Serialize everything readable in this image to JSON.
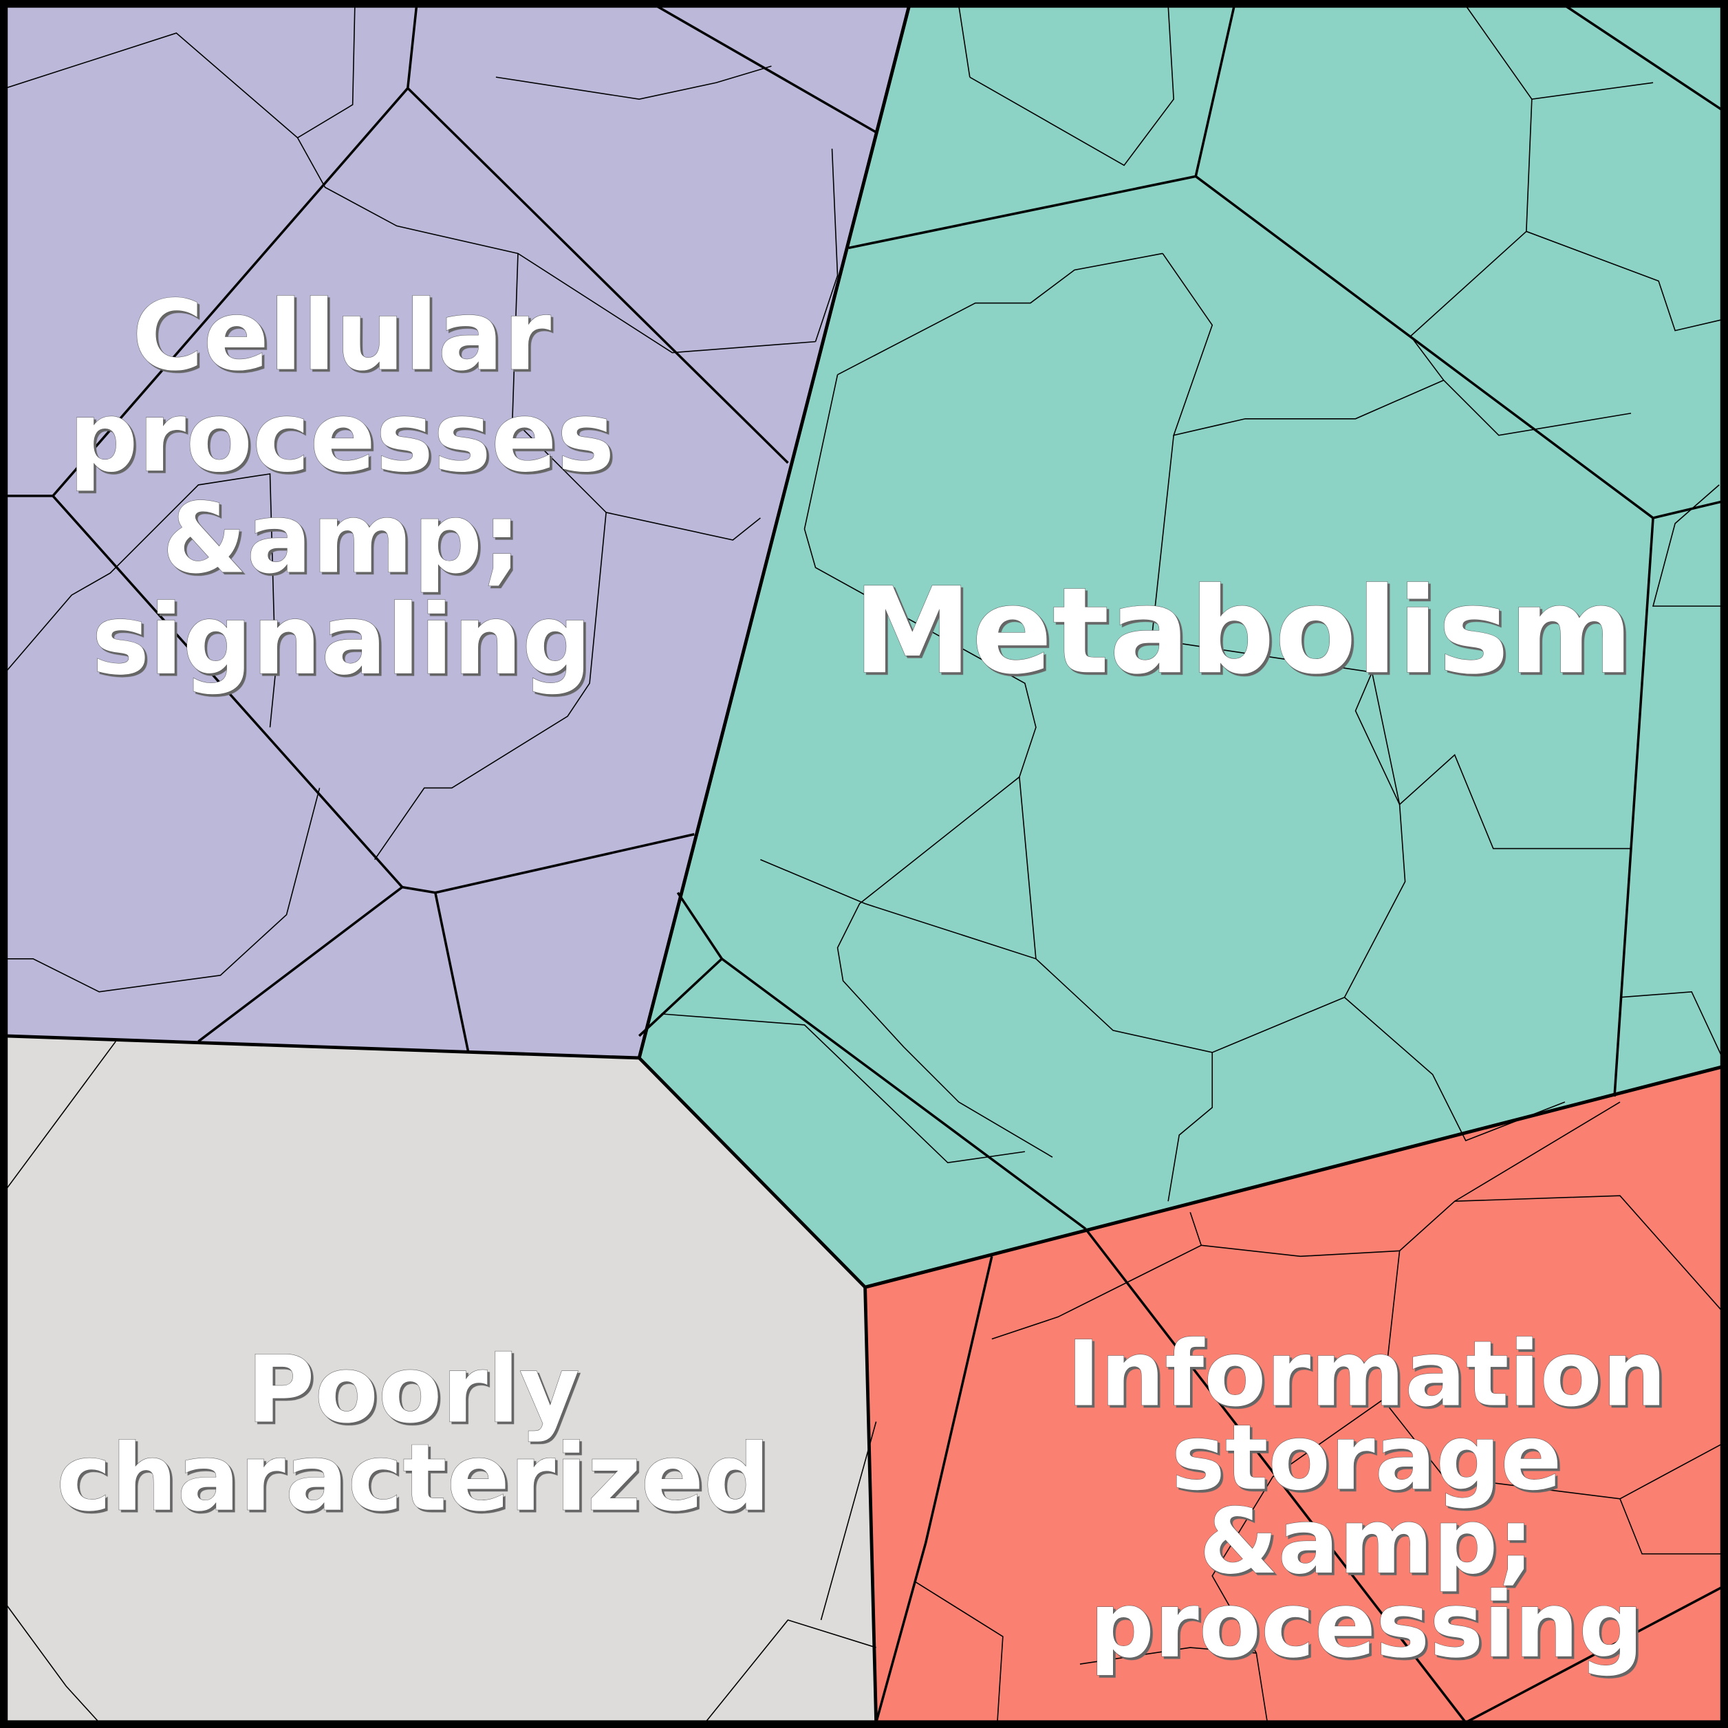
{
  "regions": [
    {
      "label_lines": [
        "Cellular",
        "processes",
        "&amp;",
        "signaling"
      ]
    },
    {
      "label_lines": [
        "Metabolism"
      ]
    },
    {
      "label_lines": [
        "Poorly",
        "characterized"
      ]
    },
    {
      "label_lines": [
        "Information",
        "storage",
        "&amp;",
        "processing"
      ]
    }
  ]
}
